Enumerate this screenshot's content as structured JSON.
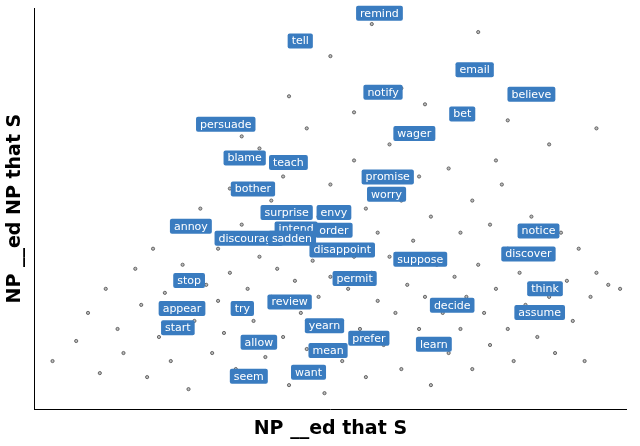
{
  "chart_data": {
    "type": "scatter",
    "x_label": "NP __ed that S",
    "y_label": "NP __ed NP that S",
    "xlim": [
      0,
      100
    ],
    "ylim": [
      0,
      100
    ],
    "tick_labels": false,
    "grid": false,
    "color": "#4d4d4d",
    "marker": "circle",
    "x": [
      3,
      7,
      9,
      11,
      12,
      14,
      15,
      17,
      18,
      19,
      20,
      21,
      22,
      23,
      24,
      25,
      26,
      27,
      28,
      29,
      30,
      31,
      31,
      32,
      33,
      33,
      34,
      35,
      36,
      37,
      38,
      38,
      39,
      40,
      40,
      41,
      42,
      42,
      43,
      44,
      44,
      45,
      46,
      46,
      47,
      48,
      48,
      49,
      50,
      50,
      51,
      52,
      52,
      53,
      54,
      54,
      55,
      56,
      56,
      57,
      58,
      58,
      59,
      60,
      60,
      61,
      62,
      62,
      63,
      64,
      65,
      65,
      66,
      67,
      67,
      68,
      69,
      70,
      70,
      71,
      72,
      72,
      73,
      74,
      74,
      75,
      76,
      77,
      77,
      78,
      79,
      80,
      80,
      81,
      82,
      83,
      84,
      85,
      86,
      87,
      87,
      88,
      89,
      90,
      91,
      92,
      93,
      94,
      95,
      97,
      99,
      62,
      50,
      75,
      54,
      66,
      43,
      80,
      35,
      95,
      57,
      78
    ],
    "values": [
      12,
      17,
      24,
      9,
      30,
      20,
      14,
      35,
      26,
      8,
      40,
      18,
      29,
      12,
      45,
      36,
      5,
      22,
      50,
      31,
      14,
      40,
      27,
      19,
      55,
      34,
      10,
      46,
      30,
      22,
      65,
      38,
      13,
      52,
      28,
      35,
      18,
      58,
      6,
      32,
      42,
      24,
      70,
      15,
      37,
      48,
      28,
      4,
      33,
      56,
      22,
      44,
      12,
      30,
      62,
      38,
      20,
      50,
      8,
      34,
      27,
      44,
      16,
      66,
      38,
      24,
      52,
      10,
      31,
      42,
      20,
      58,
      28,
      48,
      6,
      36,
      24,
      60,
      14,
      33,
      44,
      20,
      28,
      52,
      10,
      36,
      24,
      46,
      16,
      30,
      56,
      20,
      40,
      12,
      34,
      26,
      48,
      18,
      38,
      66,
      28,
      14,
      44,
      32,
      22,
      40,
      12,
      28,
      34,
      31,
      30,
      80,
      88,
      94,
      74,
      76,
      78,
      72,
      68,
      70,
      96,
      62
    ],
    "annotations": [
      {
        "text": "remind",
        "x": 58.3,
        "y": 98.7,
        "color": "#3a7cc0"
      },
      {
        "text": "tell",
        "x": 44.9,
        "y": 91.8,
        "color": "#3a7cc0"
      },
      {
        "text": "email",
        "x": 74.4,
        "y": 84.6,
        "color": "#3a7cc0"
      },
      {
        "text": "notify",
        "x": 58.9,
        "y": 79.0,
        "color": "#3a7cc0"
      },
      {
        "text": "believe",
        "x": 84.0,
        "y": 78.5,
        "color": "#3a7cc0"
      },
      {
        "text": "bet",
        "x": 72.3,
        "y": 73.6,
        "color": "#3a7cc0"
      },
      {
        "text": "persuade",
        "x": 32.3,
        "y": 71.0,
        "color": "#3a7cc0"
      },
      {
        "text": "wager",
        "x": 64.2,
        "y": 68.7,
        "color": "#3a7cc0"
      },
      {
        "text": "blame",
        "x": 35.5,
        "y": 62.6,
        "color": "#3a7cc0"
      },
      {
        "text": "teach",
        "x": 42.9,
        "y": 61.5,
        "color": "#3a7cc0"
      },
      {
        "text": "promise",
        "x": 59.7,
        "y": 57.9,
        "color": "#3a7cc0"
      },
      {
        "text": "bother",
        "x": 36.9,
        "y": 54.9,
        "color": "#3a7cc0"
      },
      {
        "text": "worry",
        "x": 59.5,
        "y": 53.6,
        "color": "#3a7cc0"
      },
      {
        "text": "surprise",
        "x": 42.6,
        "y": 49.0,
        "color": "#3a7cc0"
      },
      {
        "text": "envy",
        "x": 50.6,
        "y": 49.0,
        "color": "#3a7cc0"
      },
      {
        "text": "annoy",
        "x": 26.4,
        "y": 45.6,
        "color": "#3a7cc0"
      },
      {
        "text": "intend",
        "x": 44.2,
        "y": 44.9,
        "color": "#3a7cc0"
      },
      {
        "text": "order",
        "x": 50.6,
        "y": 44.6,
        "color": "#3a7cc0"
      },
      {
        "text": "notice",
        "x": 85.2,
        "y": 44.4,
        "color": "#3a7cc0"
      },
      {
        "text": "discourage",
        "x": 36.2,
        "y": 42.6,
        "color": "#3a7cc0"
      },
      {
        "text": "sadden",
        "x": 43.5,
        "y": 42.6,
        "color": "#3a7cc0"
      },
      {
        "text": "disappoint",
        "x": 52.0,
        "y": 39.7,
        "color": "#3a7cc0"
      },
      {
        "text": "discover",
        "x": 83.5,
        "y": 38.7,
        "color": "#3a7cc0"
      },
      {
        "text": "suppose",
        "x": 65.2,
        "y": 37.4,
        "color": "#3a7cc0"
      },
      {
        "text": "stop",
        "x": 26.1,
        "y": 32.1,
        "color": "#3a7cc0"
      },
      {
        "text": "permit",
        "x": 54.1,
        "y": 32.6,
        "color": "#3a7cc0"
      },
      {
        "text": "think",
        "x": 86.3,
        "y": 30.0,
        "color": "#3a7cc0"
      },
      {
        "text": "review",
        "x": 43.1,
        "y": 26.7,
        "color": "#3a7cc0"
      },
      {
        "text": "decide",
        "x": 70.6,
        "y": 25.9,
        "color": "#3a7cc0"
      },
      {
        "text": "appear",
        "x": 24.9,
        "y": 25.1,
        "color": "#3a7cc0"
      },
      {
        "text": "try",
        "x": 35.1,
        "y": 25.1,
        "color": "#3a7cc0"
      },
      {
        "text": "assume",
        "x": 85.4,
        "y": 24.1,
        "color": "#3a7cc0"
      },
      {
        "text": "yearn",
        "x": 49.0,
        "y": 20.8,
        "color": "#3a7cc0"
      },
      {
        "text": "start",
        "x": 24.2,
        "y": 20.3,
        "color": "#3a7cc0"
      },
      {
        "text": "prefer",
        "x": 56.5,
        "y": 17.7,
        "color": "#3a7cc0"
      },
      {
        "text": "allow",
        "x": 37.9,
        "y": 16.7,
        "color": "#3a7cc0"
      },
      {
        "text": "learn",
        "x": 67.5,
        "y": 16.2,
        "color": "#3a7cc0"
      },
      {
        "text": "mean",
        "x": 49.6,
        "y": 14.6,
        "color": "#3a7cc0"
      },
      {
        "text": "want",
        "x": 46.3,
        "y": 9.2,
        "color": "#3a7cc0"
      },
      {
        "text": "seem",
        "x": 36.2,
        "y": 8.2,
        "color": "#3a7cc0"
      }
    ]
  }
}
